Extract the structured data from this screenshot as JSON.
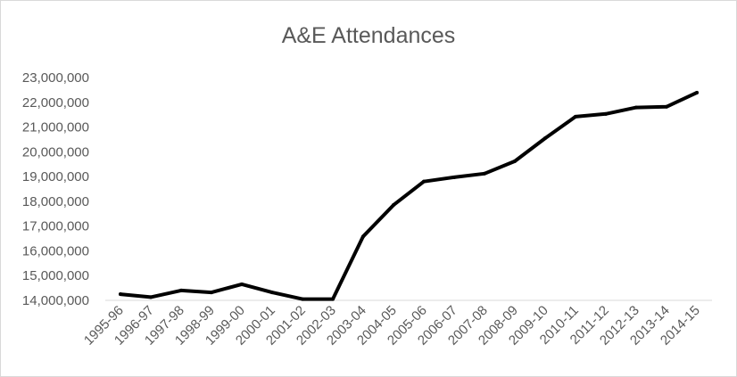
{
  "chart_data": {
    "type": "line",
    "title": "A&E Attendances",
    "xlabel": "",
    "ylabel": "",
    "categories": [
      "1995-96",
      "1996-97",
      "1997-98",
      "1998-99",
      "1999-00",
      "2000-01",
      "2001-02",
      "2002-03",
      "2003-04",
      "2004-05",
      "2005-06",
      "2006-07",
      "2007-08",
      "2008-09",
      "2009-10",
      "2010-11",
      "2011-12",
      "2012-13",
      "2013-14",
      "2014-15"
    ],
    "series": [
      {
        "values": [
          14250000,
          14130000,
          14400000,
          14320000,
          14650000,
          14320000,
          14050000,
          14050000,
          16580000,
          17850000,
          18800000,
          18970000,
          19120000,
          19620000,
          20550000,
          21420000,
          21530000,
          21790000,
          21820000,
          22390000
        ]
      }
    ],
    "y_ticks": [
      "14,000,000",
      "15,000,000",
      "16,000,000",
      "17,000,000",
      "18,000,000",
      "19,000,000",
      "20,000,000",
      "21,000,000",
      "22,000,000",
      "23,000,000"
    ],
    "ylim": [
      14000000,
      23000000
    ],
    "grid": false,
    "legend": "none",
    "line_color": "#000000"
  }
}
